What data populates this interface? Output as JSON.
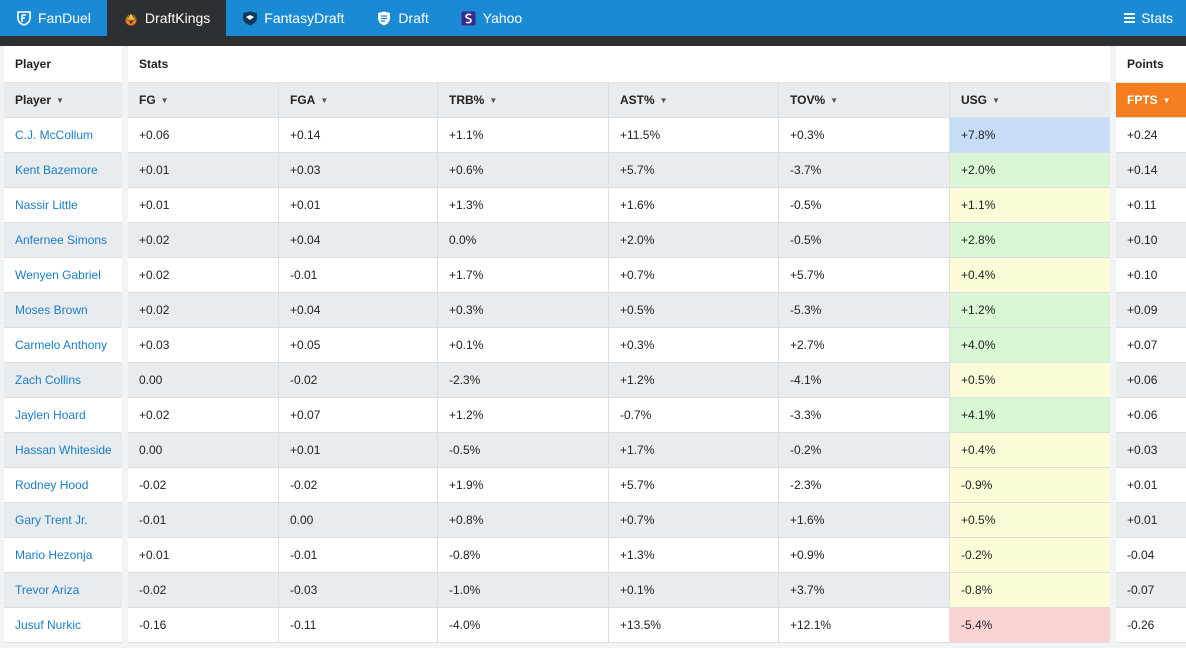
{
  "nav": {
    "tabs": [
      {
        "label": "FanDuel",
        "icon": "fanduel-shield-icon"
      },
      {
        "label": "DraftKings",
        "icon": "draftkings-crown-icon"
      },
      {
        "label": "FantasyDraft",
        "icon": "fantasydraft-shield-icon"
      },
      {
        "label": "Draft",
        "icon": "draft-logo-icon"
      },
      {
        "label": "Yahoo",
        "icon": "yahoo-logo-icon"
      }
    ],
    "active_tab": "DraftKings",
    "stats_label": "Stats",
    "stats_icon": "hamburger-menu-icon"
  },
  "groups": {
    "player": "Player",
    "stats": "Stats",
    "points": "Points"
  },
  "columns": {
    "player": "Player",
    "stats": [
      "FG",
      "FGA",
      "TRB%",
      "AST%",
      "TOV%",
      "USG"
    ],
    "points": "FPTS"
  },
  "colors": {
    "nav": "#1a8ad4",
    "active_tab": "#2d3033",
    "fpts_header": "#f47d20",
    "link": "#1a7dc4",
    "usg_blue": "#c6dcf7",
    "usg_green": "#d9f7d4",
    "usg_yellow": "#fdfcd8",
    "usg_red": "#fbd3d3"
  },
  "rows": [
    {
      "player": "C.J. McCollum",
      "fg": "+0.06",
      "fga": "+0.14",
      "trb": "+1.1%",
      "ast": "+11.5%",
      "tov": "+0.3%",
      "usg": "+7.8%",
      "usg_level": "blue",
      "fpts": "+0.24"
    },
    {
      "player": "Kent Bazemore",
      "fg": "+0.01",
      "fga": "+0.03",
      "trb": "+0.6%",
      "ast": "+5.7%",
      "tov": "-3.7%",
      "usg": "+2.0%",
      "usg_level": "green",
      "fpts": "+0.14"
    },
    {
      "player": "Nassir Little",
      "fg": "+0.01",
      "fga": "+0.01",
      "trb": "+1.3%",
      "ast": "+1.6%",
      "tov": "-0.5%",
      "usg": "+1.1%",
      "usg_level": "yellow",
      "fpts": "+0.11"
    },
    {
      "player": "Anfernee Simons",
      "fg": "+0.02",
      "fga": "+0.04",
      "trb": "0.0%",
      "ast": "+2.0%",
      "tov": "-0.5%",
      "usg": "+2.8%",
      "usg_level": "green",
      "fpts": "+0.10"
    },
    {
      "player": "Wenyen Gabriel",
      "fg": "+0.02",
      "fga": "-0.01",
      "trb": "+1.7%",
      "ast": "+0.7%",
      "tov": "+5.7%",
      "usg": "+0.4%",
      "usg_level": "yellow",
      "fpts": "+0.10"
    },
    {
      "player": "Moses Brown",
      "fg": "+0.02",
      "fga": "+0.04",
      "trb": "+0.3%",
      "ast": "+0.5%",
      "tov": "-5.3%",
      "usg": "+1.2%",
      "usg_level": "green",
      "fpts": "+0.09"
    },
    {
      "player": "Carmelo Anthony",
      "fg": "+0.03",
      "fga": "+0.05",
      "trb": "+0.1%",
      "ast": "+0.3%",
      "tov": "+2.7%",
      "usg": "+4.0%",
      "usg_level": "green",
      "fpts": "+0.07"
    },
    {
      "player": "Zach Collins",
      "fg": "0.00",
      "fga": "-0.02",
      "trb": "-2.3%",
      "ast": "+1.2%",
      "tov": "-4.1%",
      "usg": "+0.5%",
      "usg_level": "yellow",
      "fpts": "+0.06"
    },
    {
      "player": "Jaylen Hoard",
      "fg": "+0.02",
      "fga": "+0.07",
      "trb": "+1.2%",
      "ast": "-0.7%",
      "tov": "-3.3%",
      "usg": "+4.1%",
      "usg_level": "green",
      "fpts": "+0.06"
    },
    {
      "player": "Hassan Whiteside",
      "fg": "0.00",
      "fga": "+0.01",
      "trb": "-0.5%",
      "ast": "+1.7%",
      "tov": "-0.2%",
      "usg": "+0.4%",
      "usg_level": "yellow",
      "fpts": "+0.03"
    },
    {
      "player": "Rodney Hood",
      "fg": "-0.02",
      "fga": "-0.02",
      "trb": "+1.9%",
      "ast": "+5.7%",
      "tov": "-2.3%",
      "usg": "-0.9%",
      "usg_level": "yellow",
      "fpts": "+0.01"
    },
    {
      "player": "Gary Trent Jr.",
      "fg": "-0.01",
      "fga": "0.00",
      "trb": "+0.8%",
      "ast": "+0.7%",
      "tov": "+1.6%",
      "usg": "+0.5%",
      "usg_level": "yellow",
      "fpts": "+0.01"
    },
    {
      "player": "Mario Hezonja",
      "fg": "+0.01",
      "fga": "-0.01",
      "trb": "-0.8%",
      "ast": "+1.3%",
      "tov": "+0.9%",
      "usg": "-0.2%",
      "usg_level": "yellow",
      "fpts": "-0.04"
    },
    {
      "player": "Trevor Ariza",
      "fg": "-0.02",
      "fga": "-0.03",
      "trb": "-1.0%",
      "ast": "+0.1%",
      "tov": "+3.7%",
      "usg": "-0.8%",
      "usg_level": "yellow",
      "fpts": "-0.07"
    },
    {
      "player": "Jusuf Nurkic",
      "fg": "-0.16",
      "fga": "-0.11",
      "trb": "-4.0%",
      "ast": "+13.5%",
      "tov": "+12.1%",
      "usg": "-5.4%",
      "usg_level": "red",
      "fpts": "-0.26"
    }
  ]
}
